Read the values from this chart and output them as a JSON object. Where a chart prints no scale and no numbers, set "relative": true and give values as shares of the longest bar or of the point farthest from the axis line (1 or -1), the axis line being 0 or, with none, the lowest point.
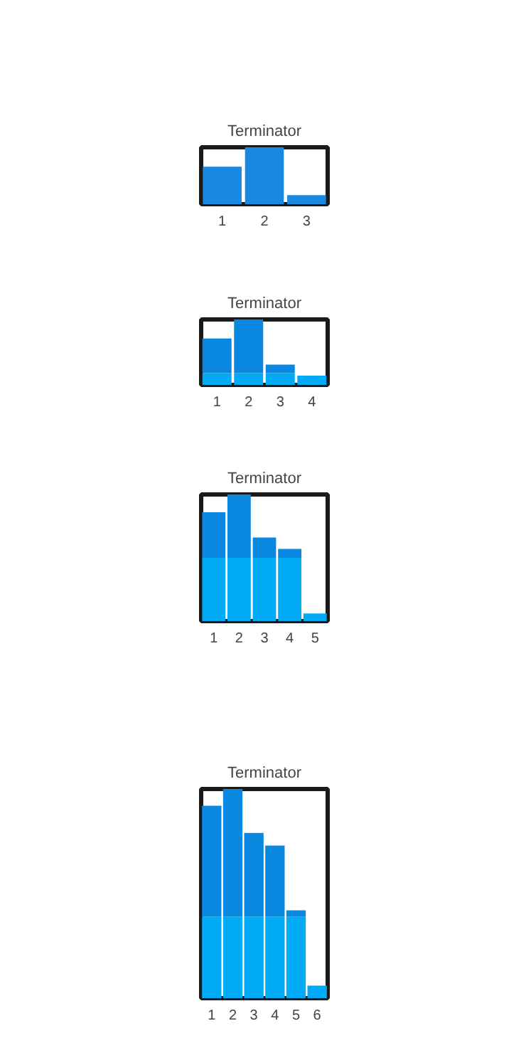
{
  "chart_data": [
    {
      "type": "bar",
      "title": "Terminator",
      "relative": true,
      "categories": [
        "1",
        "2",
        "3"
      ],
      "series": [
        {
          "color": "#1a8ae0",
          "values": [
            0.66,
            1,
            0.16
          ]
        }
      ]
    },
    {
      "type": "bar",
      "title": "Terminator",
      "relative": true,
      "stacked": true,
      "categories": [
        "1",
        "2",
        "3",
        "4"
      ],
      "series": [
        {
          "color": "#00aaf5",
          "values": [
            0.18,
            0.18,
            0.18,
            0.14
          ]
        },
        {
          "color": "#0a88e0",
          "values": [
            0.53,
            0.82,
            0.13,
            0
          ]
        }
      ]
    },
    {
      "type": "bar",
      "title": "Terminator",
      "relative": true,
      "stacked": true,
      "categories": [
        "1",
        "2",
        "3",
        "4",
        "5"
      ],
      "series": [
        {
          "color": "#00aaf5",
          "values": [
            0.5,
            0.5,
            0.5,
            0.5,
            0.06
          ]
        },
        {
          "color": "#0a88e0",
          "values": [
            0.36,
            0.5,
            0.16,
            0.07,
            0
          ]
        }
      ]
    },
    {
      "type": "bar",
      "title": "Terminator",
      "relative": true,
      "stacked": true,
      "categories": [
        "1",
        "2",
        "3",
        "4",
        "5",
        "6"
      ],
      "series": [
        {
          "color": "#00aaf5",
          "values": [
            0.39,
            0.39,
            0.39,
            0.39,
            0.39,
            0.06
          ]
        },
        {
          "color": "#0a88e0",
          "values": [
            0.53,
            0.61,
            0.4,
            0.34,
            0.03,
            0
          ]
        }
      ]
    }
  ]
}
